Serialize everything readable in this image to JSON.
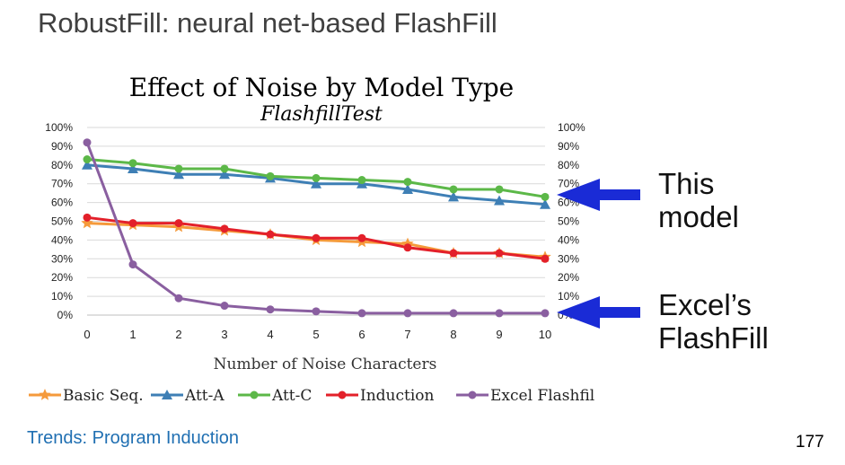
{
  "slide": {
    "title": "RobustFill: neural net-based FlashFill",
    "footer": "Trends: Program Induction",
    "page_number": "177"
  },
  "annotations": {
    "model_label": [
      "This",
      "model"
    ],
    "excel_label": [
      "Excel’s",
      "FlashFill"
    ],
    "arrow_color": "#1a2bd6"
  },
  "chart_data": {
    "type": "line",
    "title": "Effect of Noise by Model Type",
    "subtitle": "FlashfillTest",
    "xlabel": "Number of Noise Characters",
    "x": [
      0,
      1,
      2,
      3,
      4,
      5,
      6,
      7,
      8,
      9,
      10
    ],
    "ylim": [
      0,
      100
    ],
    "yticks": [
      "0%",
      "10%",
      "20%",
      "30%",
      "40%",
      "50%",
      "60%",
      "70%",
      "80%",
      "90%",
      "100%"
    ],
    "grid": true,
    "legend_position": "bottom",
    "series": [
      {
        "name": "Basic Seq.",
        "color": "#f59a3b",
        "marker": "star",
        "values": [
          49,
          48,
          47,
          45,
          43,
          40,
          39,
          38,
          33,
          33,
          31
        ]
      },
      {
        "name": "Att-A",
        "color": "#3e7fb5",
        "marker": "triangle",
        "values": [
          80,
          78,
          75,
          75,
          73,
          70,
          70,
          67,
          63,
          61,
          59
        ]
      },
      {
        "name": "Att-C",
        "color": "#5cb848",
        "marker": "circle",
        "values": [
          83,
          81,
          78,
          78,
          74,
          73,
          72,
          71,
          67,
          67,
          63
        ]
      },
      {
        "name": "Induction",
        "color": "#e3202a",
        "marker": "circle",
        "values": [
          52,
          49,
          49,
          46,
          43,
          41,
          41,
          36,
          33,
          33,
          30
        ]
      },
      {
        "name": "Excel Flashfil",
        "color": "#8a5fa0",
        "marker": "circle",
        "values": [
          92,
          27,
          9,
          5,
          3,
          2,
          1,
          1,
          1,
          1,
          1
        ]
      }
    ]
  }
}
